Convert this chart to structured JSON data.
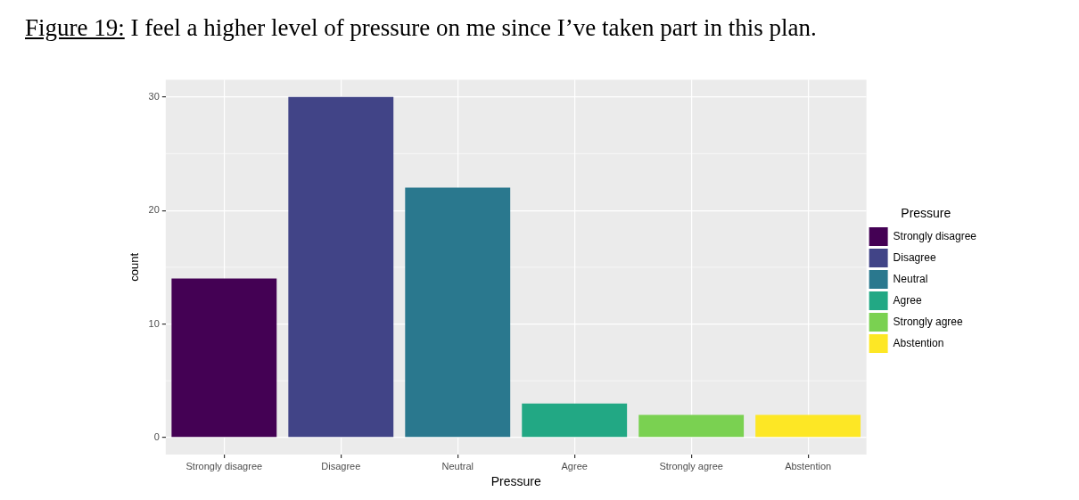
{
  "chart_data": {
    "type": "bar",
    "title": "Figure 19: I feel a higher level of pressure on me since I’ve taken part in this plan.",
    "xlabel": "Pressure",
    "ylabel": "count",
    "legend_title": "Pressure",
    "categories": [
      "Strongly disagree",
      "Disagree",
      "Neutral",
      "Agree",
      "Strongly agree",
      "Abstention"
    ],
    "series": [
      {
        "name": "Strongly disagree",
        "color": "#440154",
        "values": [
          14,
          null,
          null,
          null,
          null,
          null
        ]
      },
      {
        "name": "Disagree",
        "color": "#414487",
        "values": [
          null,
          30,
          null,
          null,
          null,
          null
        ]
      },
      {
        "name": "Neutral",
        "color": "#2a788e",
        "values": [
          null,
          null,
          22,
          null,
          null,
          null
        ]
      },
      {
        "name": "Agree",
        "color": "#22a884",
        "values": [
          null,
          null,
          null,
          3,
          null,
          null
        ]
      },
      {
        "name": "Strongly agree",
        "color": "#7ad151",
        "values": [
          null,
          null,
          null,
          null,
          2,
          null
        ]
      },
      {
        "name": "Abstention",
        "color": "#fde725",
        "values": [
          null,
          null,
          null,
          null,
          null,
          2
        ]
      }
    ],
    "ylim": [
      -1.5,
      31.5
    ],
    "yticks": [
      0,
      10,
      20,
      30
    ],
    "grid": true,
    "legend": "right"
  }
}
